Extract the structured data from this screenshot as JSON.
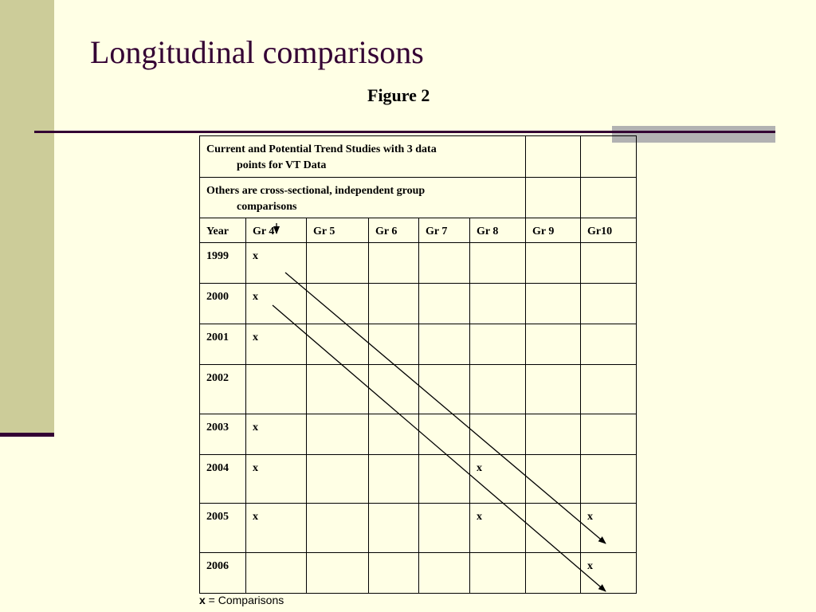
{
  "slide": {
    "title": "Longitudinal comparisons",
    "figure_label": "Figure 2"
  },
  "table": {
    "note1_line1": "Current and Potential Trend Studies with 3 data",
    "note1_line2": "points for VT Data",
    "note2_line1": "Others are cross-sectional, independent group",
    "note2_line2": "comparisons",
    "headers": [
      "Year",
      "Gr 4",
      "Gr 5",
      "Gr 6",
      "Gr 7",
      "Gr 8",
      "Gr 9",
      "Gr10"
    ],
    "rows": [
      [
        "1999",
        "x",
        "",
        "",
        "",
        "",
        "",
        ""
      ],
      [
        "2000",
        "x",
        "",
        "",
        "",
        "",
        "",
        ""
      ],
      [
        "2001",
        "x",
        "",
        "",
        "",
        "",
        "",
        ""
      ],
      [
        "2002",
        "",
        "",
        "",
        "",
        "",
        "",
        ""
      ],
      [
        "2003",
        "x",
        "",
        "",
        "",
        "",
        "",
        ""
      ],
      [
        "2004",
        "x",
        "",
        "",
        "",
        "x",
        "",
        ""
      ],
      [
        "2005",
        "x",
        "",
        "",
        "",
        "x",
        "",
        "x"
      ],
      [
        "2006",
        "",
        "",
        "",
        "",
        "",
        "",
        "x"
      ]
    ]
  },
  "legend": {
    "symbol": "x",
    "text": " = Comparisons"
  },
  "colors": {
    "background": "#FFFFE5",
    "accent": "#330033",
    "side_bar": "#CCCC99",
    "gray_bar": "#B2B2B2"
  }
}
